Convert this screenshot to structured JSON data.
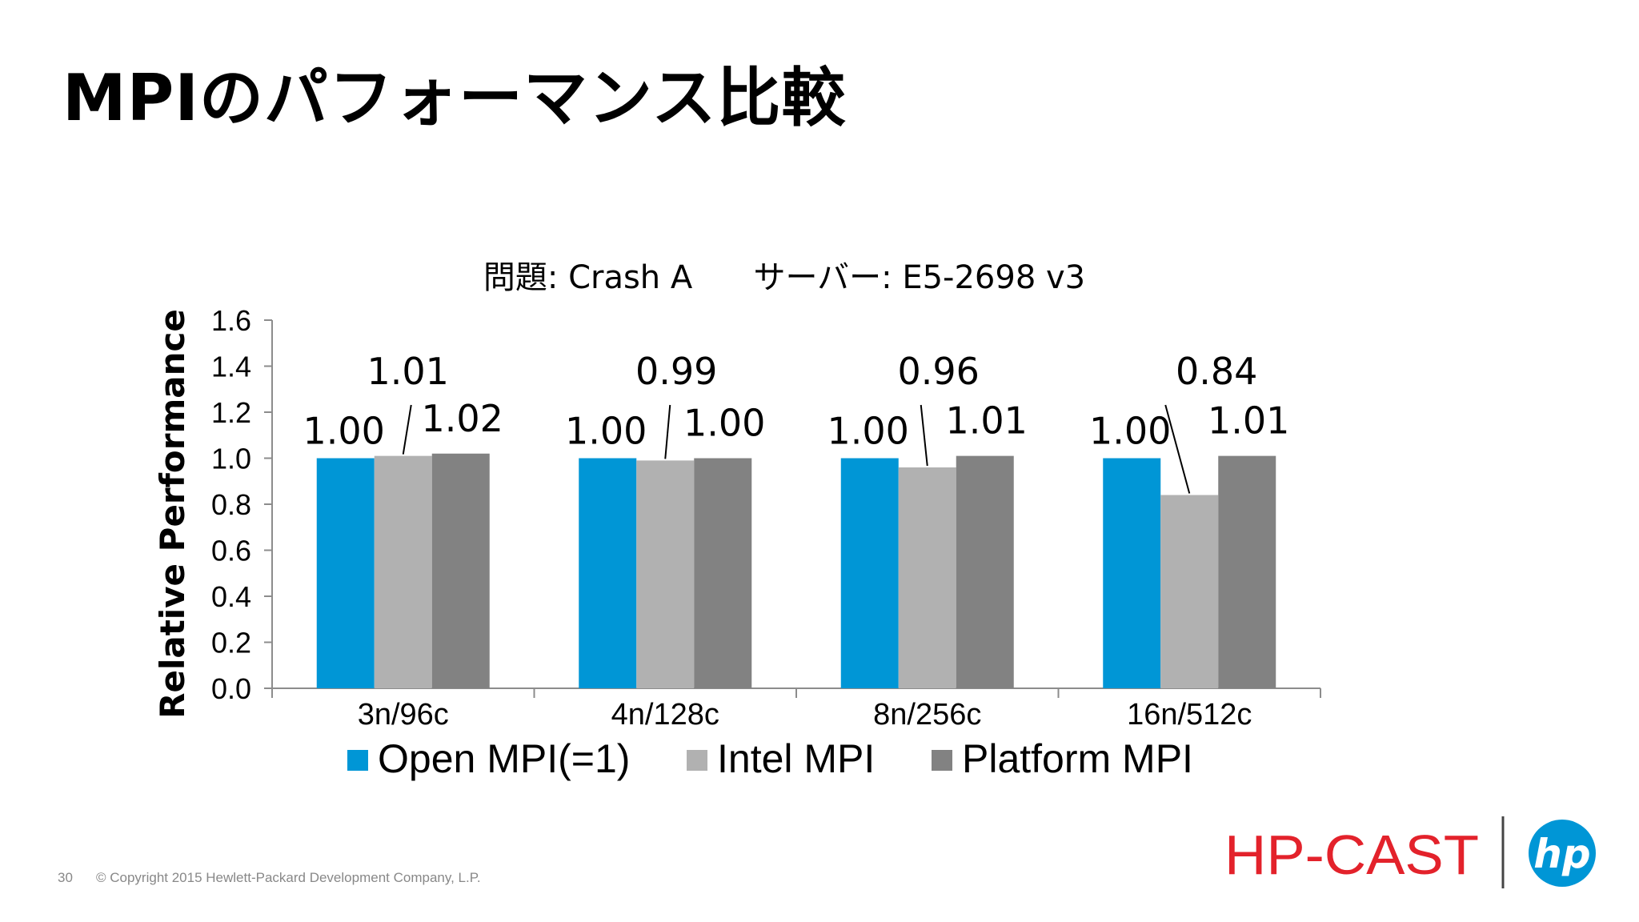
{
  "slide": {
    "title": "MPIのパフォーマンス比較",
    "page_number": "30",
    "copyright": "© Copyright 2015 Hewlett-Packard Development Company, L.P."
  },
  "logos": {
    "hpcast": "HP-CAST",
    "hp": "hp"
  },
  "colors": {
    "open_mpi": "#0096D6",
    "intel_mpi": "#B1B1B1",
    "platform_mpi": "#828282",
    "hpcast_red": "#E3222B",
    "hp_blue": "#0096D6"
  },
  "chart_data": {
    "type": "bar",
    "title": "問題: Crash A      サーバー: E5-2698 v3",
    "ylabel": "Relative Performance",
    "xlabel": "",
    "ylim": [
      0,
      1.6
    ],
    "yticks": [
      "0.0",
      "0.2",
      "0.4",
      "0.6",
      "0.8",
      "1.0",
      "1.2",
      "1.4",
      "1.6"
    ],
    "categories": [
      "3n/96c",
      "4n/128c",
      "8n/256c",
      "16n/512c"
    ],
    "series": [
      {
        "name": "Open MPI(=1)",
        "values": [
          1.0,
          1.0,
          1.0,
          1.0
        ],
        "labels": [
          "1.00",
          "1.00",
          "1.00",
          "1.00"
        ]
      },
      {
        "name": "Intel MPI",
        "values": [
          1.01,
          0.99,
          0.96,
          0.84
        ],
        "labels": [
          "1.01",
          "0.99",
          "0.96",
          "0.84"
        ]
      },
      {
        "name": "Platform MPI",
        "values": [
          1.02,
          1.0,
          1.01,
          1.01
        ],
        "labels": [
          "1.02",
          "1.00",
          "1.01",
          "1.01"
        ]
      }
    ],
    "legend_position": "bottom"
  }
}
